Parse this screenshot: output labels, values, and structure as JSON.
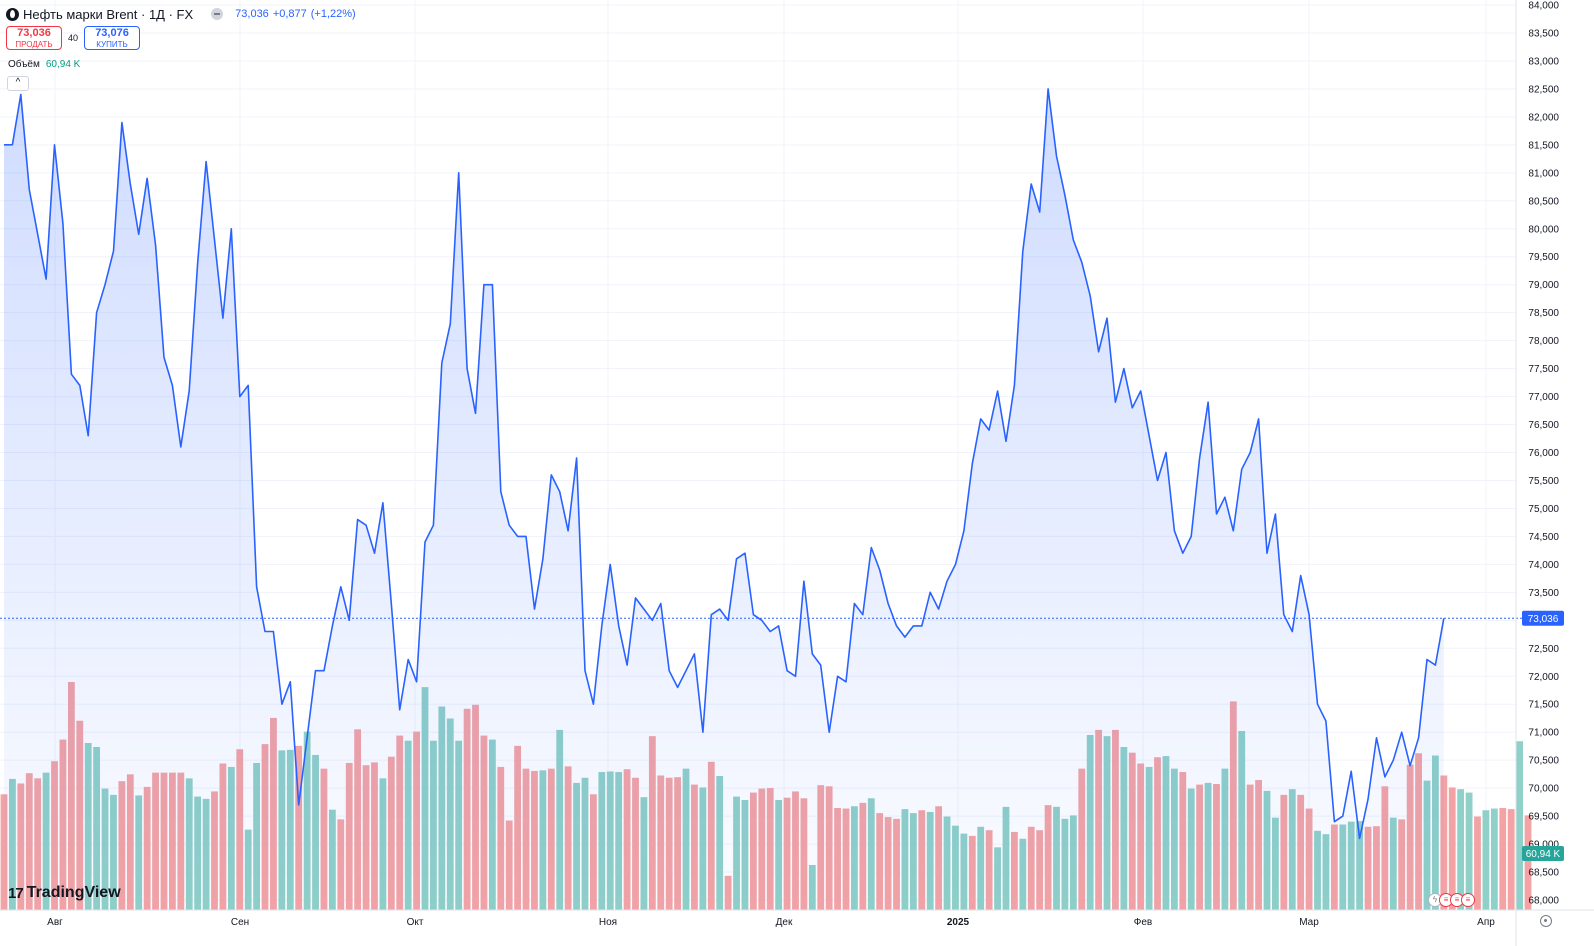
{
  "header": {
    "title": "Нефть марки Brent · 1Д · FX",
    "last": "73,036",
    "change": "+0,877",
    "change_pct": "(+1,22%)"
  },
  "trade": {
    "sell_price": "73,036",
    "sell_label": "ПРОДАТЬ",
    "spread": "40",
    "buy_price": "73,076",
    "buy_label": "КУПИТЬ"
  },
  "volume": {
    "label": "Объём",
    "value": "60,94 K"
  },
  "price_label": "73,036",
  "volume_label": "60,94 K",
  "logo_text": "TradingView",
  "colors": {
    "line": "#2962ff",
    "vol_up": "#8fd0c8",
    "vol_down": "#f4a3a4",
    "price_badge": "#2962ff",
    "volume_badge": "#26a69a"
  },
  "chart_data": {
    "type": "line",
    "title": "Нефть марки Brent · 1Д · FX",
    "y_ticks": [
      "68,000",
      "68,500",
      "69,000",
      "69,500",
      "70,000",
      "70,500",
      "71,000",
      "71,500",
      "72,000",
      "72,500",
      "73,000",
      "73,500",
      "74,000",
      "74,500",
      "75,000",
      "75,500",
      "76,000",
      "76,500",
      "77,000",
      "77,500",
      "78,000",
      "78,500",
      "79,000",
      "79,500",
      "80,000",
      "80,500",
      "81,000",
      "81,500",
      "82,000",
      "82,500",
      "83,000",
      "83,500",
      "84,000"
    ],
    "ylim": [
      68,
      84
    ],
    "x_labels": [
      "Авг",
      "Сен",
      "Окт",
      "Ноя",
      "Дек",
      "2025",
      "Фев",
      "Мар",
      "Апр"
    ],
    "grid": true,
    "price_series": [
      81.5,
      81.5,
      82.4,
      80.7,
      79.9,
      79.1,
      81.5,
      80.1,
      77.4,
      77.2,
      76.3,
      78.5,
      79.0,
      79.6,
      81.9,
      80.8,
      79.9,
      80.9,
      79.7,
      77.7,
      77.2,
      76.1,
      77.1,
      79.4,
      81.2,
      79.8,
      78.4,
      80.0,
      77.0,
      77.2,
      73.6,
      72.8,
      72.8,
      71.5,
      71.9,
      69.7,
      70.9,
      72.1,
      72.1,
      72.9,
      73.6,
      73.0,
      74.8,
      74.7,
      74.2,
      75.1,
      73.3,
      71.4,
      72.3,
      71.9,
      74.4,
      74.7,
      77.6,
      78.3,
      81.0,
      77.5,
      76.7,
      79.0,
      79.0,
      75.3,
      74.7,
      74.5,
      74.5,
      73.2,
      74.1,
      75.6,
      75.3,
      74.6,
      75.9,
      72.1,
      71.5,
      72.9,
      74.0,
      72.9,
      72.2,
      73.4,
      73.2,
      73.0,
      73.3,
      72.1,
      71.8,
      72.1,
      72.4,
      71.0,
      73.1,
      73.2,
      73.0,
      74.1,
      74.2,
      73.1,
      73.0,
      72.8,
      72.9,
      72.1,
      72.0,
      73.7,
      72.4,
      72.2,
      71.0,
      72.0,
      71.9,
      73.3,
      73.1,
      74.3,
      73.9,
      73.3,
      72.9,
      72.7,
      72.9,
      72.9,
      73.5,
      73.2,
      73.7,
      74.0,
      74.6,
      75.8,
      76.6,
      76.4,
      77.1,
      76.2,
      77.2,
      79.6,
      80.8,
      80.3,
      82.5,
      81.3,
      80.6,
      79.8,
      79.4,
      78.8,
      77.8,
      78.4,
      76.9,
      77.5,
      76.8,
      77.1,
      76.3,
      75.5,
      76.0,
      74.6,
      74.2,
      74.5,
      75.9,
      76.9,
      74.9,
      75.2,
      74.6,
      75.7,
      76.0,
      76.6,
      74.2,
      74.9,
      73.1,
      72.8,
      73.8,
      73.1,
      71.5,
      71.2,
      69.4,
      69.5,
      70.3,
      69.1,
      69.8,
      70.9,
      70.2,
      70.5,
      71.0,
      70.4,
      70.9,
      72.3,
      72.2,
      73.036
    ],
    "volume_series": [
      {
        "v": 20.3,
        "up": false
      },
      {
        "v": 23.0,
        "up": true
      },
      {
        "v": 22.2,
        "up": false
      },
      {
        "v": 24.0,
        "up": false
      },
      {
        "v": 23.1,
        "up": false
      },
      {
        "v": 24.1,
        "up": true
      },
      {
        "v": 26.1,
        "up": false
      },
      {
        "v": 29.9,
        "up": false
      },
      {
        "v": 40.0,
        "up": false
      },
      {
        "v": 33.2,
        "up": false
      },
      {
        "v": 29.3,
        "up": true
      },
      {
        "v": 28.6,
        "up": true
      },
      {
        "v": 21.3,
        "up": true
      },
      {
        "v": 20.2,
        "up": true
      },
      {
        "v": 22.6,
        "up": false
      },
      {
        "v": 23.8,
        "up": false
      },
      {
        "v": 20.1,
        "up": true
      },
      {
        "v": 21.6,
        "up": false
      },
      {
        "v": 24.1,
        "up": false
      },
      {
        "v": 24.1,
        "up": false
      },
      {
        "v": 24.1,
        "up": false
      },
      {
        "v": 24.1,
        "up": false
      },
      {
        "v": 23.1,
        "up": true
      },
      {
        "v": 19.9,
        "up": true
      },
      {
        "v": 19.5,
        "up": true
      },
      {
        "v": 20.8,
        "up": false
      },
      {
        "v": 25.7,
        "up": false
      },
      {
        "v": 25.1,
        "up": true
      },
      {
        "v": 28.2,
        "up": false
      },
      {
        "v": 14.1,
        "up": true
      },
      {
        "v": 25.8,
        "up": true
      },
      {
        "v": 29.1,
        "up": false
      },
      {
        "v": 33.7,
        "up": false
      },
      {
        "v": 28.0,
        "up": true
      },
      {
        "v": 28.1,
        "up": true
      },
      {
        "v": 28.8,
        "up": false
      },
      {
        "v": 31.3,
        "up": true
      },
      {
        "v": 27.2,
        "up": true
      },
      {
        "v": 24.8,
        "up": false
      },
      {
        "v": 17.6,
        "up": true
      },
      {
        "v": 15.9,
        "up": false
      },
      {
        "v": 25.8,
        "up": false
      },
      {
        "v": 31.7,
        "up": false
      },
      {
        "v": 25.4,
        "up": false
      },
      {
        "v": 25.9,
        "up": false
      },
      {
        "v": 23.1,
        "up": true
      },
      {
        "v": 26.9,
        "up": false
      },
      {
        "v": 30.6,
        "up": false
      },
      {
        "v": 29.7,
        "up": true
      },
      {
        "v": 31.3,
        "up": false
      },
      {
        "v": 39.1,
        "up": true
      },
      {
        "v": 29.7,
        "up": true
      },
      {
        "v": 35.7,
        "up": true
      },
      {
        "v": 33.6,
        "up": true
      },
      {
        "v": 29.7,
        "up": true
      },
      {
        "v": 35.3,
        "up": false
      },
      {
        "v": 36.0,
        "up": false
      },
      {
        "v": 30.6,
        "up": false
      },
      {
        "v": 29.9,
        "up": true
      },
      {
        "v": 25.1,
        "up": false
      },
      {
        "v": 15.7,
        "up": false
      },
      {
        "v": 28.8,
        "up": false
      },
      {
        "v": 24.8,
        "up": false
      },
      {
        "v": 24.4,
        "up": false
      },
      {
        "v": 24.5,
        "up": true
      },
      {
        "v": 24.8,
        "up": false
      },
      {
        "v": 31.6,
        "up": true
      },
      {
        "v": 25.2,
        "up": false
      },
      {
        "v": 22.3,
        "up": true
      },
      {
        "v": 23.2,
        "up": true
      },
      {
        "v": 20.3,
        "up": false
      },
      {
        "v": 24.2,
        "up": true
      },
      {
        "v": 24.3,
        "up": true
      },
      {
        "v": 24.2,
        "up": true
      },
      {
        "v": 24.7,
        "up": false
      },
      {
        "v": 23.2,
        "up": false
      },
      {
        "v": 19.8,
        "up": true
      },
      {
        "v": 30.5,
        "up": false
      },
      {
        "v": 23.6,
        "up": false
      },
      {
        "v": 23.2,
        "up": false
      },
      {
        "v": 23.3,
        "up": false
      },
      {
        "v": 24.8,
        "up": true
      },
      {
        "v": 22.0,
        "up": false
      },
      {
        "v": 21.5,
        "up": true
      },
      {
        "v": 26.0,
        "up": false
      },
      {
        "v": 23.5,
        "up": true
      },
      {
        "v": 6.0,
        "up": false
      },
      {
        "v": 19.9,
        "up": true
      },
      {
        "v": 19.3,
        "up": true
      },
      {
        "v": 20.6,
        "up": false
      },
      {
        "v": 21.3,
        "up": false
      },
      {
        "v": 21.4,
        "up": false
      },
      {
        "v": 19.3,
        "up": true
      },
      {
        "v": 19.7,
        "up": false
      },
      {
        "v": 20.8,
        "up": false
      },
      {
        "v": 19.6,
        "up": false
      },
      {
        "v": 7.9,
        "up": true
      },
      {
        "v": 21.9,
        "up": false
      },
      {
        "v": 21.7,
        "up": false
      },
      {
        "v": 17.9,
        "up": false
      },
      {
        "v": 17.8,
        "up": false
      },
      {
        "v": 18.2,
        "up": true
      },
      {
        "v": 18.8,
        "up": false
      },
      {
        "v": 19.6,
        "up": true
      },
      {
        "v": 17.0,
        "up": false
      },
      {
        "v": 16.3,
        "up": false
      },
      {
        "v": 16.0,
        "up": false
      },
      {
        "v": 17.7,
        "up": true
      },
      {
        "v": 17.0,
        "up": true
      },
      {
        "v": 17.5,
        "up": false
      },
      {
        "v": 17.2,
        "up": true
      },
      {
        "v": 18.2,
        "up": false
      },
      {
        "v": 16.4,
        "up": true
      },
      {
        "v": 14.8,
        "up": true
      },
      {
        "v": 13.4,
        "up": true
      },
      {
        "v": 13.0,
        "up": false
      },
      {
        "v": 14.6,
        "up": true
      },
      {
        "v": 14.0,
        "up": false
      },
      {
        "v": 11.0,
        "up": true
      },
      {
        "v": 18.1,
        "up": true
      },
      {
        "v": 13.7,
        "up": false
      },
      {
        "v": 12.5,
        "up": true
      },
      {
        "v": 14.6,
        "up": false
      },
      {
        "v": 14.0,
        "up": false
      },
      {
        "v": 18.4,
        "up": false
      },
      {
        "v": 18.1,
        "up": true
      },
      {
        "v": 16.0,
        "up": true
      },
      {
        "v": 16.6,
        "up": true
      },
      {
        "v": 24.8,
        "up": false
      },
      {
        "v": 30.7,
        "up": true
      },
      {
        "v": 31.6,
        "up": false
      },
      {
        "v": 30.5,
        "up": true
      },
      {
        "v": 31.6,
        "up": false
      },
      {
        "v": 28.6,
        "up": true
      },
      {
        "v": 27.6,
        "up": false
      },
      {
        "v": 25.7,
        "up": false
      },
      {
        "v": 25.1,
        "up": true
      },
      {
        "v": 26.8,
        "up": false
      },
      {
        "v": 27.0,
        "up": true
      },
      {
        "v": 24.8,
        "up": true
      },
      {
        "v": 24.2,
        "up": false
      },
      {
        "v": 21.3,
        "up": true
      },
      {
        "v": 22.0,
        "up": false
      },
      {
        "v": 22.3,
        "up": true
      },
      {
        "v": 22.1,
        "up": false
      },
      {
        "v": 24.8,
        "up": true
      },
      {
        "v": 36.6,
        "up": false
      },
      {
        "v": 31.4,
        "up": true
      },
      {
        "v": 22.0,
        "up": false
      },
      {
        "v": 22.8,
        "up": false
      },
      {
        "v": 20.9,
        "up": true
      },
      {
        "v": 16.2,
        "up": true
      },
      {
        "v": 20.2,
        "up": false
      },
      {
        "v": 21.2,
        "up": true
      },
      {
        "v": 20.2,
        "up": false
      },
      {
        "v": 17.8,
        "up": false
      },
      {
        "v": 13.9,
        "up": true
      },
      {
        "v": 13.3,
        "up": true
      },
      {
        "v": 15.0,
        "up": false
      },
      {
        "v": 15.0,
        "up": true
      },
      {
        "v": 15.5,
        "up": true
      },
      {
        "v": 15.6,
        "up": true
      },
      {
        "v": 14.6,
        "up": false
      },
      {
        "v": 14.7,
        "up": false
      },
      {
        "v": 21.7,
        "up": false
      },
      {
        "v": 16.2,
        "up": true
      },
      {
        "v": 15.9,
        "up": false
      },
      {
        "v": 25.5,
        "up": false
      },
      {
        "v": 27.5,
        "up": false
      },
      {
        "v": 22.7,
        "up": true
      },
      {
        "v": 27.1,
        "up": true
      },
      {
        "v": 23.6,
        "up": false
      },
      {
        "v": 21.5,
        "up": false
      },
      {
        "v": 21.2,
        "up": true
      },
      {
        "v": 20.6,
        "up": true
      },
      {
        "v": 16.4,
        "up": false
      },
      {
        "v": 17.5,
        "up": true
      },
      {
        "v": 17.8,
        "up": true
      },
      {
        "v": 17.9,
        "up": false
      },
      {
        "v": 17.7,
        "up": false
      },
      {
        "v": 29.6,
        "up": true
      },
      {
        "v": 16.6,
        "up": false
      }
    ]
  }
}
